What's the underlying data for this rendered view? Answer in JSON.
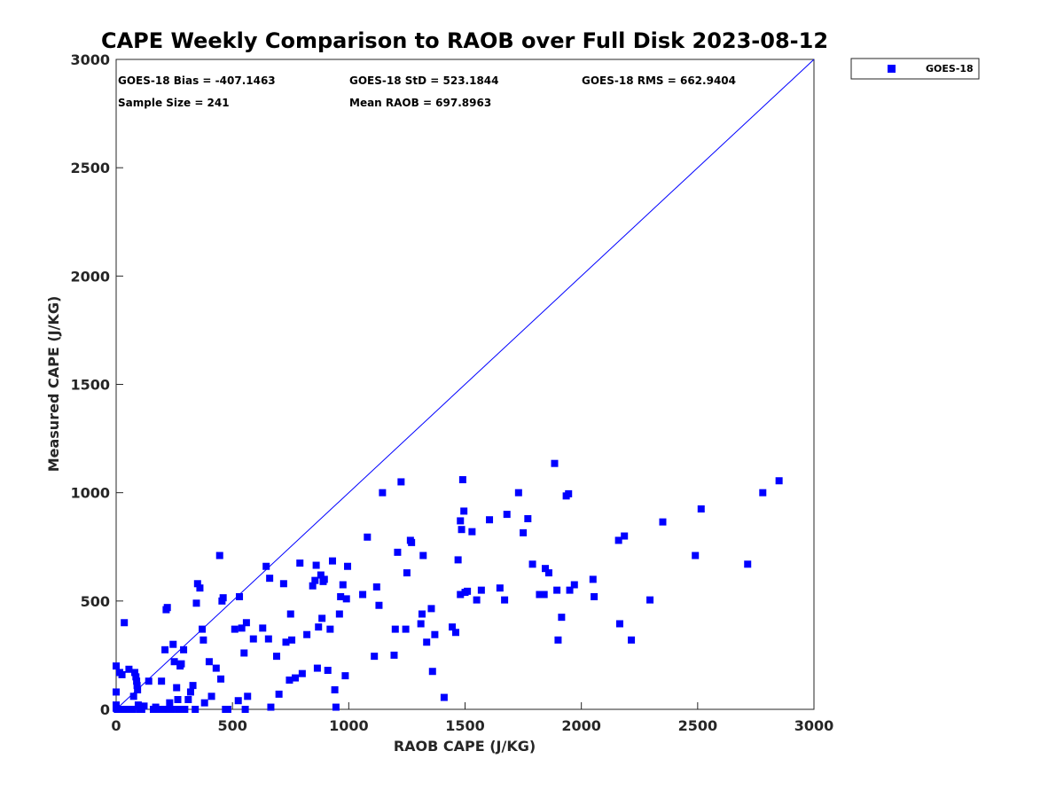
{
  "chart_data": {
    "type": "scatter",
    "title": "CAPE Weekly Comparison to RAOB over Full Disk 2023-08-12",
    "xlabel": "RAOB CAPE (J/KG)",
    "ylabel": "Measured CAPE (J/KG)",
    "xlim": [
      0,
      3000
    ],
    "ylim": [
      0,
      3000
    ],
    "xticks": [
      0,
      500,
      1000,
      1500,
      2000,
      2500,
      3000
    ],
    "yticks": [
      0,
      500,
      1000,
      1500,
      2000,
      2500,
      3000
    ],
    "grid": false,
    "legend_position": "outside-top-right",
    "reference_line": {
      "from": [
        0,
        0
      ],
      "to": [
        3000,
        3000
      ],
      "color": "#0000ff"
    },
    "stats": {
      "bias": "GOES-18 Bias = -407.1463",
      "std": "GOES-18 StD = 523.1844",
      "rms": "GOES-18 RMS = 662.9404",
      "sample": "Sample Size = 241",
      "mean": "Mean RAOB = 697.8963"
    },
    "series": [
      {
        "name": "GOES-18",
        "color": "#0000ff",
        "marker": "square",
        "points": [
          [
            0,
            200
          ],
          [
            0,
            80
          ],
          [
            0,
            20
          ],
          [
            0,
            5
          ],
          [
            5,
            0
          ],
          [
            10,
            0
          ],
          [
            15,
            170
          ],
          [
            25,
            160
          ],
          [
            30,
            0
          ],
          [
            35,
            400
          ],
          [
            40,
            0
          ],
          [
            50,
            0
          ],
          [
            55,
            185
          ],
          [
            60,
            0
          ],
          [
            70,
            0
          ],
          [
            75,
            60
          ],
          [
            80,
            170
          ],
          [
            85,
            150
          ],
          [
            88,
            130
          ],
          [
            90,
            110
          ],
          [
            92,
            90
          ],
          [
            95,
            20
          ],
          [
            100,
            0
          ],
          [
            110,
            0
          ],
          [
            120,
            15
          ],
          [
            140,
            130
          ],
          [
            160,
            0
          ],
          [
            170,
            10
          ],
          [
            180,
            0
          ],
          [
            195,
            130
          ],
          [
            200,
            0
          ],
          [
            210,
            275
          ],
          [
            215,
            460
          ],
          [
            220,
            470
          ],
          [
            225,
            0
          ],
          [
            230,
            30
          ],
          [
            240,
            0
          ],
          [
            245,
            300
          ],
          [
            250,
            220
          ],
          [
            260,
            100
          ],
          [
            265,
            45
          ],
          [
            270,
            0
          ],
          [
            275,
            200
          ],
          [
            280,
            210
          ],
          [
            290,
            275
          ],
          [
            295,
            0
          ],
          [
            310,
            45
          ],
          [
            320,
            80
          ],
          [
            330,
            110
          ],
          [
            340,
            0
          ],
          [
            345,
            490
          ],
          [
            350,
            580
          ],
          [
            360,
            560
          ],
          [
            370,
            370
          ],
          [
            375,
            320
          ],
          [
            380,
            30
          ],
          [
            400,
            220
          ],
          [
            410,
            60
          ],
          [
            430,
            190
          ],
          [
            445,
            710
          ],
          [
            450,
            140
          ],
          [
            455,
            500
          ],
          [
            460,
            515
          ],
          [
            470,
            0
          ],
          [
            480,
            0
          ],
          [
            510,
            370
          ],
          [
            525,
            40
          ],
          [
            530,
            520
          ],
          [
            540,
            375
          ],
          [
            550,
            260
          ],
          [
            555,
            0
          ],
          [
            560,
            400
          ],
          [
            565,
            60
          ],
          [
            590,
            325
          ],
          [
            630,
            375
          ],
          [
            645,
            660
          ],
          [
            655,
            325
          ],
          [
            660,
            605
          ],
          [
            665,
            10
          ],
          [
            690,
            245
          ],
          [
            700,
            70
          ],
          [
            720,
            580
          ],
          [
            730,
            310
          ],
          [
            745,
            135
          ],
          [
            750,
            440
          ],
          [
            755,
            320
          ],
          [
            770,
            145
          ],
          [
            790,
            675
          ],
          [
            800,
            165
          ],
          [
            820,
            345
          ],
          [
            845,
            570
          ],
          [
            855,
            595
          ],
          [
            860,
            665
          ],
          [
            865,
            190
          ],
          [
            870,
            380
          ],
          [
            880,
            620
          ],
          [
            885,
            420
          ],
          [
            890,
            590
          ],
          [
            895,
            600
          ],
          [
            910,
            180
          ],
          [
            920,
            370
          ],
          [
            930,
            685
          ],
          [
            940,
            90
          ],
          [
            945,
            10
          ],
          [
            960,
            440
          ],
          [
            965,
            520
          ],
          [
            975,
            575
          ],
          [
            985,
            155
          ],
          [
            990,
            510
          ],
          [
            995,
            660
          ],
          [
            1060,
            530
          ],
          [
            1080,
            795
          ],
          [
            1110,
            245
          ],
          [
            1120,
            565
          ],
          [
            1130,
            480
          ],
          [
            1145,
            1000
          ],
          [
            1195,
            250
          ],
          [
            1200,
            370
          ],
          [
            1210,
            725
          ],
          [
            1225,
            1050
          ],
          [
            1245,
            370
          ],
          [
            1250,
            630
          ],
          [
            1265,
            780
          ],
          [
            1270,
            770
          ],
          [
            1310,
            395
          ],
          [
            1315,
            440
          ],
          [
            1320,
            710
          ],
          [
            1335,
            310
          ],
          [
            1355,
            465
          ],
          [
            1360,
            175
          ],
          [
            1370,
            345
          ],
          [
            1410,
            55
          ],
          [
            1445,
            380
          ],
          [
            1460,
            355
          ],
          [
            1470,
            690
          ],
          [
            1480,
            870
          ],
          [
            1485,
            830
          ],
          [
            1490,
            1060
          ],
          [
            1495,
            915
          ],
          [
            1500,
            540
          ],
          [
            1510,
            545
          ],
          [
            1530,
            820
          ],
          [
            1550,
            505
          ],
          [
            1570,
            550
          ],
          [
            1605,
            875
          ],
          [
            1650,
            560
          ],
          [
            1670,
            505
          ],
          [
            1680,
            900
          ],
          [
            1730,
            1000
          ],
          [
            1750,
            815
          ],
          [
            1770,
            880
          ],
          [
            1790,
            670
          ],
          [
            1840,
            530
          ],
          [
            1845,
            650
          ],
          [
            1860,
            630
          ],
          [
            1885,
            1135
          ],
          [
            1895,
            550
          ],
          [
            1900,
            320
          ],
          [
            1915,
            425
          ],
          [
            1935,
            985
          ],
          [
            1945,
            995
          ],
          [
            1950,
            550
          ],
          [
            1970,
            575
          ],
          [
            2050,
            600
          ],
          [
            2055,
            520
          ],
          [
            2160,
            780
          ],
          [
            2165,
            395
          ],
          [
            2185,
            800
          ],
          [
            2215,
            320
          ],
          [
            2295,
            505
          ],
          [
            2350,
            865
          ],
          [
            2490,
            710
          ],
          [
            2515,
            925
          ],
          [
            2715,
            670
          ],
          [
            2780,
            1000
          ],
          [
            2850,
            1055
          ],
          [
            1480,
            530
          ],
          [
            1820,
            530
          ]
        ]
      }
    ]
  }
}
